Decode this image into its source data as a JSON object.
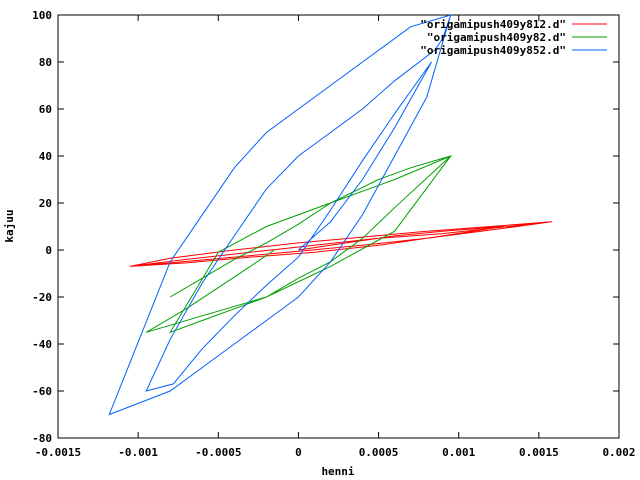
{
  "chart_data": {
    "type": "line",
    "title": "",
    "xlabel": "henni",
    "ylabel": "kajuu",
    "xlim": [
      -0.0015,
      0.002
    ],
    "ylim": [
      -80,
      100
    ],
    "x_ticks": [
      -0.0015,
      -0.001,
      -0.0005,
      0,
      0.0005,
      0.001,
      0.0015,
      0.002
    ],
    "x_tick_labels": [
      "-0.0015",
      "-0.001",
      "-0.0005",
      "0",
      "0.0005",
      "0.001",
      "0.0015",
      "0.002"
    ],
    "y_ticks": [
      -80,
      -60,
      -40,
      -20,
      0,
      20,
      40,
      60,
      80,
      100
    ],
    "y_tick_labels": [
      "-80",
      "-60",
      "-40",
      "-20",
      "0",
      "20",
      "40",
      "60",
      "80",
      "100"
    ],
    "grid": false,
    "legend_position": "top-right",
    "series": [
      {
        "name": "\"origamipush409y812.d\"",
        "color": "#ff0000",
        "x": [
          0,
          0.0003,
          0.0006,
          0.0009,
          0.00128,
          0.0009,
          0.0005,
          0.0001,
          -0.0003,
          -0.0007,
          -0.00105,
          -0.0007,
          -0.0003,
          0.0001,
          0.0005,
          0.0009,
          0.00158,
          0.0012,
          0.0008,
          0.0004,
          0,
          -0.0004,
          -0.0008,
          -0.00105,
          -0.0008,
          -0.0004,
          0,
          0.0004,
          0.0008,
          0.0012,
          0.00158
        ],
        "y": [
          0,
          3,
          6,
          8,
          10,
          6,
          2,
          -1,
          -3,
          -5.5,
          -7,
          -4,
          -1,
          2,
          5,
          7,
          12,
          8.5,
          5,
          2,
          -0.5,
          -3,
          -5.5,
          -7,
          -3.5,
          0,
          3,
          5.5,
          8,
          10,
          12
        ]
      },
      {
        "name": "\"origamipush409y82.d\"",
        "color": "#00a000",
        "x": [
          -0.00015,
          -0.0003,
          -0.0005,
          -0.0007,
          -0.00095,
          -0.0006,
          -0.0002,
          0.0002,
          0.0006,
          0.00095,
          0.0006,
          0.0002,
          -0.0002,
          -0.0005,
          -0.0008,
          -0.0006,
          -0.0004,
          -0.0002,
          0,
          0.0002,
          0.0004,
          0.0006,
          0.00095,
          0.0007,
          0.0005,
          0.0002,
          0,
          -0.0002,
          -0.0004,
          -0.0006,
          -0.0008
        ],
        "y": [
          0,
          -7,
          -16,
          -25,
          -35,
          -28,
          -20,
          -7,
          8,
          40,
          30,
          20,
          10,
          -1,
          -35,
          -30,
          -25,
          -20,
          -12,
          -5,
          5,
          18,
          40,
          35,
          30,
          20,
          11,
          3,
          -4,
          -12,
          -20
        ]
      },
      {
        "name": "\"origamipush409y852.d\"",
        "color": "#0060ff",
        "x": [
          0,
          0.0002,
          0.0004,
          0.0006,
          0.00083,
          0.0006,
          0.0004,
          0.0002,
          0,
          -0.0002,
          -0.0004,
          -0.0006,
          -0.00078,
          -0.00095,
          -0.0008,
          -0.0006,
          -0.0004,
          -0.0002,
          0,
          0.0002,
          0.0004,
          0.0006,
          0.00085,
          0.0009,
          0.00095,
          0.0007,
          0.0004,
          0.0002,
          0,
          -0.0002,
          -0.0004,
          -0.0006,
          -0.0008,
          -0.00118,
          -0.0008,
          -0.0006,
          -0.0004,
          -0.0002,
          0,
          0.0002,
          0.0004,
          0.0006,
          0.0008,
          0.00095
        ],
        "y": [
          0,
          12,
          30,
          52,
          80,
          58,
          38,
          17,
          -3,
          -15,
          -28,
          -42,
          -57,
          -60,
          -38,
          -14,
          6,
          26,
          40,
          50,
          60,
          72,
          85,
          90,
          100,
          95,
          80,
          70,
          60,
          50,
          35,
          15,
          -5,
          -70,
          -60,
          -50,
          -40,
          -30,
          -20,
          -5,
          15,
          40,
          65,
          100
        ]
      }
    ]
  }
}
